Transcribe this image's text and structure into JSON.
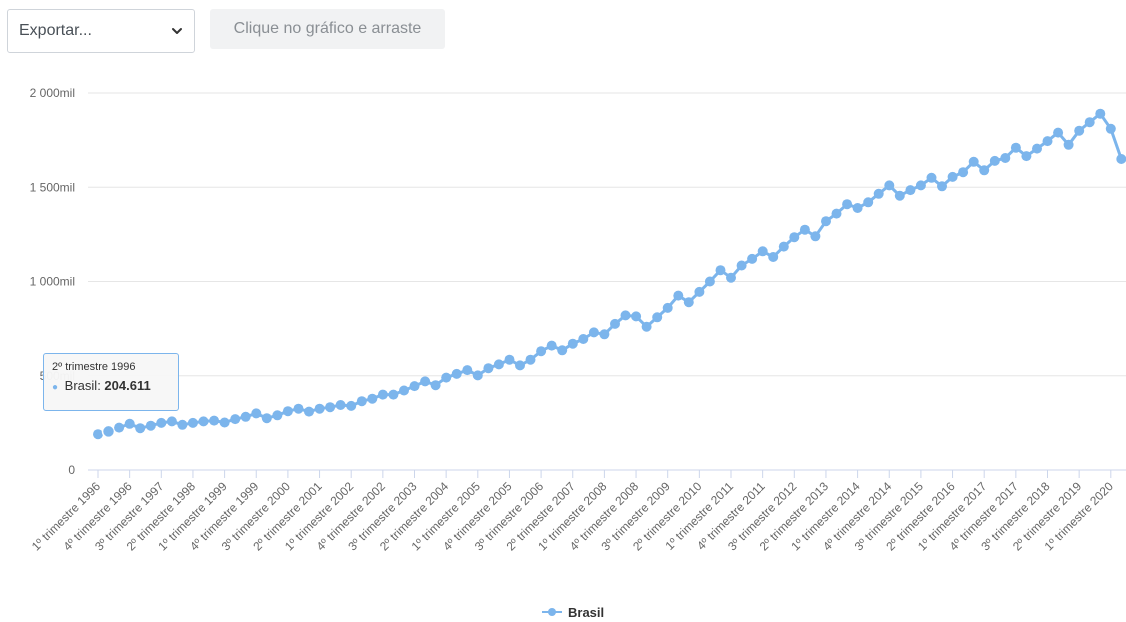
{
  "controls": {
    "export_label": "Exportar...",
    "drag_hint": "Clique no gráfico e arraste"
  },
  "colors": {
    "series": "#7cb5ec",
    "grid": "#e6e6e6",
    "axis_text": "#666666"
  },
  "tooltip": {
    "header": "2º trimestre 1996",
    "series_label": "Brasil",
    "value": "204.611"
  },
  "legend": {
    "label": "Brasil",
    "icon": "line-dot-icon"
  },
  "chart_data": {
    "type": "line",
    "title": "",
    "xlabel": "",
    "ylabel": "",
    "ylim": [
      0,
      2000000
    ],
    "y_ticks": [
      0,
      500000,
      1000000,
      1500000,
      2000000
    ],
    "y_tick_labels": [
      "0",
      "500mil",
      "1 000mil",
      "1 500mil",
      "2 000mil"
    ],
    "grid": true,
    "legend_position": "bottom-center",
    "x_tick_labels": [
      "1º trimestre 1996",
      "4º trimestre 1996",
      "3º trimestre 1997",
      "2º trimestre 1998",
      "1º trimestre 1999",
      "4º trimestre 1999",
      "3º trimestre 2000",
      "2º trimestre 2001",
      "1º trimestre 2002",
      "4º trimestre 2002",
      "3º trimestre 2003",
      "2º trimestre 2004",
      "1º trimestre 2005",
      "4º trimestre 2005",
      "3º trimestre 2006",
      "2º trimestre 2007",
      "1º trimestre 2008",
      "4º trimestre 2008",
      "3º trimestre 2009",
      "2º trimestre 2010",
      "1º trimestre 2011",
      "4º trimestre 2011",
      "3º trimestre 2012",
      "2º trimestre 2013",
      "1º trimestre 2014",
      "4º trimestre 2014",
      "3º trimestre 2015",
      "2º trimestre 2016",
      "1º trimestre 2017",
      "4º trimestre 2017",
      "3º trimestre 2018",
      "2º trimestre 2019",
      "1º trimestre 2020"
    ],
    "series": [
      {
        "name": "Brasil",
        "start": "1º trimestre 1996",
        "values": [
          190000,
          204611,
          225000,
          245000,
          222000,
          235000,
          250000,
          258000,
          240000,
          250000,
          258000,
          262000,
          252000,
          270000,
          282000,
          300000,
          275000,
          290000,
          312000,
          325000,
          310000,
          325000,
          333000,
          345000,
          340000,
          365000,
          378000,
          400000,
          400000,
          422000,
          445000,
          470000,
          450000,
          490000,
          510000,
          530000,
          502000,
          540000,
          560000,
          585000,
          555000,
          585000,
          630000,
          660000,
          635000,
          670000,
          695000,
          730000,
          720000,
          775000,
          820000,
          815000,
          760000,
          810000,
          860000,
          925000,
          890000,
          945000,
          1000000,
          1060000,
          1020000,
          1085000,
          1120000,
          1160000,
          1130000,
          1185000,
          1235000,
          1275000,
          1240000,
          1320000,
          1360000,
          1410000,
          1390000,
          1420000,
          1465000,
          1510000,
          1455000,
          1485000,
          1510000,
          1550000,
          1505000,
          1555000,
          1580000,
          1635000,
          1590000,
          1640000,
          1655000,
          1710000,
          1665000,
          1705000,
          1745000,
          1790000,
          1725000,
          1800000,
          1845000,
          1890000,
          1810000,
          1650000
        ]
      }
    ]
  }
}
